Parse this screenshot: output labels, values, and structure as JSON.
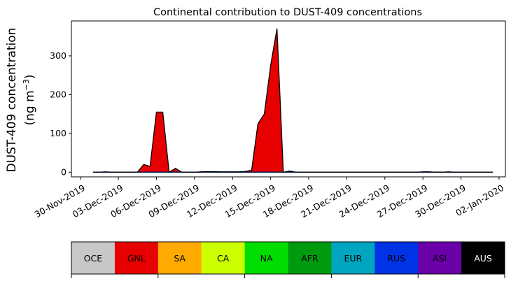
{
  "chart_data": {
    "type": "area",
    "title": "Continental contribution to DUST-409 concentrations",
    "ylabel_line1": "DUST-409 concentration",
    "ylabel_line2": "(ng m",
    "ylabel_unit_sup": "−3",
    "ylabel_close": ")",
    "xlabel": "",
    "x_start": "2019-11-30",
    "x_end": "2020-01-02",
    "xlim_days": [
      -0.7,
      33.5
    ],
    "ylim": [
      -12,
      390
    ],
    "yticks": [
      0,
      100,
      200,
      300
    ],
    "xticks": [
      {
        "day": 0,
        "label": "30-Nov-2019"
      },
      {
        "day": 3,
        "label": "03-Dec-2019"
      },
      {
        "day": 6,
        "label": "06-Dec-2019"
      },
      {
        "day": 9,
        "label": "09-Dec-2019"
      },
      {
        "day": 12,
        "label": "12-Dec-2019"
      },
      {
        "day": 15,
        "label": "15-Dec-2019"
      },
      {
        "day": 18,
        "label": "18-Dec-2019"
      },
      {
        "day": 21,
        "label": "21-Dec-2019"
      },
      {
        "day": 24,
        "label": "24-Dec-2019"
      },
      {
        "day": 27,
        "label": "27-Dec-2019"
      },
      {
        "day": 30,
        "label": "30-Dec-2019"
      },
      {
        "day": 33,
        "label": "02-Jan-2020"
      }
    ],
    "x_days": [
      1,
      1.5,
      2,
      2.5,
      3,
      3.5,
      4,
      4.5,
      5,
      5.5,
      6,
      6.5,
      7,
      7.5,
      8,
      8.5,
      9,
      9.5,
      10,
      10.5,
      11,
      11.5,
      12,
      12.5,
      13,
      13.5,
      14,
      14.5,
      15,
      15.5,
      16,
      16.5,
      17,
      17.5,
      18,
      18.5,
      19,
      19.5,
      20,
      20.5,
      21,
      21.5,
      22,
      22.5,
      23,
      23.5,
      24,
      24.5,
      25,
      25.5,
      26,
      26.5,
      27,
      27.5,
      28,
      28.5,
      29,
      29.5,
      30,
      30.5,
      31,
      31.5,
      32,
      32.5
    ],
    "series": [
      {
        "name": "GNL",
        "color": "#e60000",
        "values": [
          0,
          0,
          1,
          0,
          0,
          0,
          0,
          0,
          20,
          15,
          155,
          155,
          0,
          10,
          0,
          0,
          0,
          1,
          1,
          1,
          1,
          1,
          1,
          1,
          2,
          5,
          125,
          150,
          275,
          370,
          0,
          3,
          0,
          0,
          0,
          0,
          0,
          0,
          0,
          0,
          0,
          0,
          0,
          0,
          0,
          0,
          0,
          0,
          0,
          0,
          0,
          0,
          0,
          0,
          0,
          0,
          0,
          0,
          0,
          0,
          0,
          0,
          0,
          0
        ]
      },
      {
        "name": "NA",
        "color": "#00dd00",
        "values": [
          0,
          0,
          0,
          0,
          0,
          0,
          0,
          0,
          0,
          0,
          0,
          0,
          0,
          0,
          0,
          0,
          0,
          0,
          0.5,
          0.5,
          0,
          0,
          0,
          0,
          0,
          0,
          0,
          0,
          0,
          0,
          0,
          0,
          0,
          0,
          0,
          0,
          0,
          0,
          0,
          0,
          0,
          0,
          0,
          0,
          0,
          0,
          0,
          0,
          0,
          0,
          0,
          0,
          0,
          0,
          0,
          0,
          0,
          0,
          0,
          0,
          0,
          0,
          0,
          0
        ]
      },
      {
        "name": "CA",
        "color": "#ccff00",
        "values": [
          0,
          0,
          0,
          0,
          0,
          0,
          0,
          0,
          0,
          0,
          0,
          0,
          0,
          0,
          0,
          0,
          0,
          0,
          0,
          0,
          0,
          0,
          0,
          0,
          0,
          0,
          0,
          0,
          0,
          0,
          0,
          0,
          0,
          0,
          0,
          0,
          0,
          0,
          0,
          0,
          0,
          0,
          0,
          0,
          0,
          0,
          0,
          0,
          0,
          0,
          0,
          0,
          1,
          1,
          0,
          0,
          1,
          0,
          0,
          0,
          0,
          0,
          0,
          0
        ]
      }
    ],
    "legend": [
      {
        "label": "OCE",
        "color": "#c8c8c8",
        "text_color": "#000000"
      },
      {
        "label": "GNL",
        "color": "#e60000",
        "text_color": "#000000"
      },
      {
        "label": "SA",
        "color": "#ffaa00",
        "text_color": "#000000"
      },
      {
        "label": "CA",
        "color": "#ccff00",
        "text_color": "#000000"
      },
      {
        "label": "NA",
        "color": "#00dd00",
        "text_color": "#000000"
      },
      {
        "label": "AFR",
        "color": "#009a0e",
        "text_color": "#000000"
      },
      {
        "label": "EUR",
        "color": "#00a6c0",
        "text_color": "#000000"
      },
      {
        "label": "RUS",
        "color": "#0033e6",
        "text_color": "#000000"
      },
      {
        "label": "ASI",
        "color": "#6a00a8",
        "text_color": "#000000"
      },
      {
        "label": "AUS",
        "color": "#000000",
        "text_color": "#ffffff"
      }
    ],
    "total_line_color": "#000000",
    "baseline_color": "#001a4d",
    "grid": false,
    "legend_placement": "bottom colorbar"
  }
}
